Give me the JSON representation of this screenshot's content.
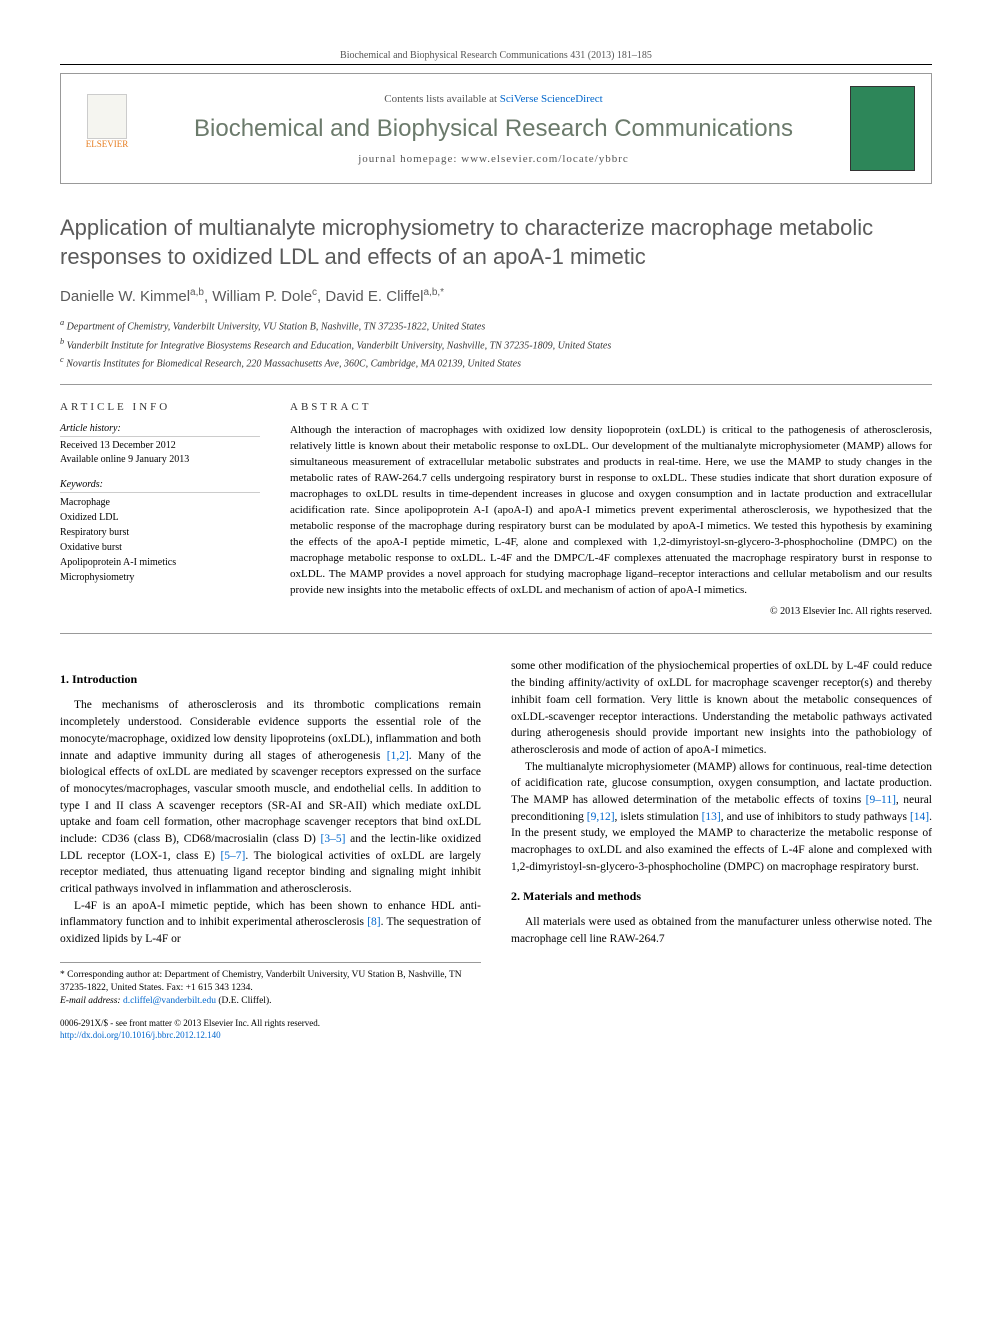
{
  "header": {
    "citation": "Biochemical and Biophysical Research Communications 431 (2013) 181–185",
    "contents_prefix": "Contents lists available at ",
    "contents_link": "SciVerse ScienceDirect",
    "journal_title": "Biochemical and Biophysical Research Communications",
    "homepage_prefix": "journal homepage: ",
    "homepage_url": "www.elsevier.com/locate/ybbrc",
    "publisher": "ELSEVIER"
  },
  "title": "Application of multianalyte microphysiometry to characterize macrophage metabolic responses to oxidized LDL and effects of an apoA-1 mimetic",
  "authors_html": "Danielle W. Kimmel",
  "author1": "Danielle W. Kimmel",
  "author1_sup": "a,b",
  "author2": ", William P. Dole",
  "author2_sup": "c",
  "author3": ", David E. Cliffel",
  "author3_sup": "a,b,",
  "author3_star": "*",
  "affiliations": {
    "a": "Department of Chemistry, Vanderbilt University, VU Station B, Nashville, TN 37235-1822, United States",
    "a_sup": "a",
    "b": "Vanderbilt Institute for Integrative Biosystems Research and Education, Vanderbilt University, Nashville, TN 37235-1809, United States",
    "b_sup": "b",
    "c": "Novartis Institutes for Biomedical Research, 220 Massachusetts Ave, 360C, Cambridge, MA 02139, United States",
    "c_sup": "c"
  },
  "info": {
    "heading": "article info",
    "history_label": "Article history:",
    "received": "Received 13 December 2012",
    "available": "Available online 9 January 2013",
    "keywords_label": "Keywords:",
    "keywords": [
      "Macrophage",
      "Oxidized LDL",
      "Respiratory burst",
      "Oxidative burst",
      "Apolipoprotein A-I mimetics",
      "Microphysiometry"
    ]
  },
  "abstract": {
    "heading": "abstract",
    "text": "Although the interaction of macrophages with oxidized low density liopoprotein (oxLDL) is critical to the pathogenesis of atherosclerosis, relatively little is known about their metabolic response to oxLDL. Our development of the multianalyte microphysiometer (MAMP) allows for simultaneous measurement of extracellular metabolic substrates and products in real-time. Here, we use the MAMP to study changes in the metabolic rates of RAW-264.7 cells undergoing respiratory burst in response to oxLDL. These studies indicate that short duration exposure of macrophages to oxLDL results in time-dependent increases in glucose and oxygen consumption and in lactate production and extracellular acidification rate. Since apolipoprotein A-I (apoA-I) and apoA-I mimetics prevent experimental atherosclerosis, we hypothesized that the metabolic response of the macrophage during respiratory burst can be modulated by apoA-I mimetics. We tested this hypothesis by examining the effects of the apoA-I peptide mimetic, L-4F, alone and complexed with 1,2-dimyristoyl-sn-glycero-3-phosphocholine (DMPC) on the macrophage metabolic response to oxLDL. L-4F and the DMPC/L-4F complexes attenuated the macrophage respiratory burst in response to oxLDL. The MAMP provides a novel approach for studying macrophage ligand–receptor interactions and cellular metabolism and our results provide new insights into the metabolic effects of oxLDL and mechanism of action of apoA-I mimetics.",
    "copyright": "© 2013 Elsevier Inc. All rights reserved."
  },
  "sections": {
    "intro_heading": "1. Introduction",
    "intro_p1": "The mechanisms of atherosclerosis and its thrombotic complications remain incompletely understood. Considerable evidence supports the essential role of the monocyte/macrophage, oxidized low density lipoproteins (oxLDL), inflammation and both innate and adaptive immunity during all stages of atherogenesis ",
    "intro_ref1": "[1,2]",
    "intro_p1b": ". Many of the biological effects of oxLDL are mediated by scavenger receptors expressed on the surface of monocytes/macrophages, vascular smooth muscle, and endothelial cells. In addition to type I and II class A scavenger receptors (SR-AI and SR-AII) which mediate oxLDL uptake and foam cell formation, other macrophage scavenger receptors that bind oxLDL include: CD36 (class B), CD68/macrosialin (class D) ",
    "intro_ref2": "[3–5]",
    "intro_p1c": " and the lectin-like oxidized LDL receptor (LOX-1, class E) ",
    "intro_ref3": "[5–7]",
    "intro_p1d": ". The biological activities of oxLDL are largely receptor mediated, thus attenuating ligand receptor binding and signaling might inhibit critical pathways involved in inflammation and atherosclerosis.",
    "intro_p2": "L-4F is an apoA-I mimetic peptide, which has been shown to enhance HDL anti-inflammatory function and to inhibit experimental atherosclerosis ",
    "intro_ref4": "[8]",
    "intro_p2b": ". The sequestration of oxidized lipids by L-4F or",
    "intro_p3": "some other modification of the physiochemical properties of oxLDL by L-4F could reduce the binding affinity/activity of oxLDL for macrophage scavenger receptor(s) and thereby inhibit foam cell formation. Very little is known about the metabolic consequences of oxLDL-scavenger receptor interactions. Understanding the metabolic pathways activated during atherogenesis should provide important new insights into the pathobiology of atherosclerosis and mode of action of apoA-I mimetics.",
    "intro_p4": "The multianalyte microphysiometer (MAMP) allows for continuous, real-time detection of acidification rate, glucose consumption, oxygen consumption, and lactate production. The MAMP has allowed determination of the metabolic effects of toxins ",
    "intro_ref5": "[9–11]",
    "intro_p4b": ", neural preconditioning ",
    "intro_ref6": "[9,12]",
    "intro_p4c": ", islets stimulation ",
    "intro_ref7": "[13]",
    "intro_p4d": ", and use of inhibitors to study pathways ",
    "intro_ref8": "[14]",
    "intro_p4e": ". In the present study, we employed the MAMP to characterize the metabolic response of macrophages to oxLDL and also examined the effects of L-4F alone and complexed with 1,2-dimyristoyl-sn-glycero-3-phosphocholine (DMPC) on macrophage respiratory burst.",
    "methods_heading": "2. Materials and methods",
    "methods_p1": "All materials were used as obtained from the manufacturer unless otherwise noted. The macrophage cell line RAW-264.7"
  },
  "footnote": {
    "star": "*",
    "text1": " Corresponding author at: Department of Chemistry, Vanderbilt University, VU Station B, Nashville, TN 37235-1822, United States. Fax: +1 615 343 1234.",
    "email_label": "E-mail address: ",
    "email": "d.cliffel@vanderbilt.edu",
    "email_suffix": " (D.E. Cliffel)."
  },
  "footer": {
    "issn": "0006-291X/$ - see front matter © 2013 Elsevier Inc. All rights reserved.",
    "doi_label": "http://dx.doi.org/",
    "doi": "10.1016/j.bbrc.2012.12.140"
  },
  "colors": {
    "link": "#0066cc",
    "journal_title": "#6b7a6b",
    "title_gray": "#5a5a5a",
    "cover_green": "#2d8659",
    "elsevier_orange": "#e67e22"
  }
}
